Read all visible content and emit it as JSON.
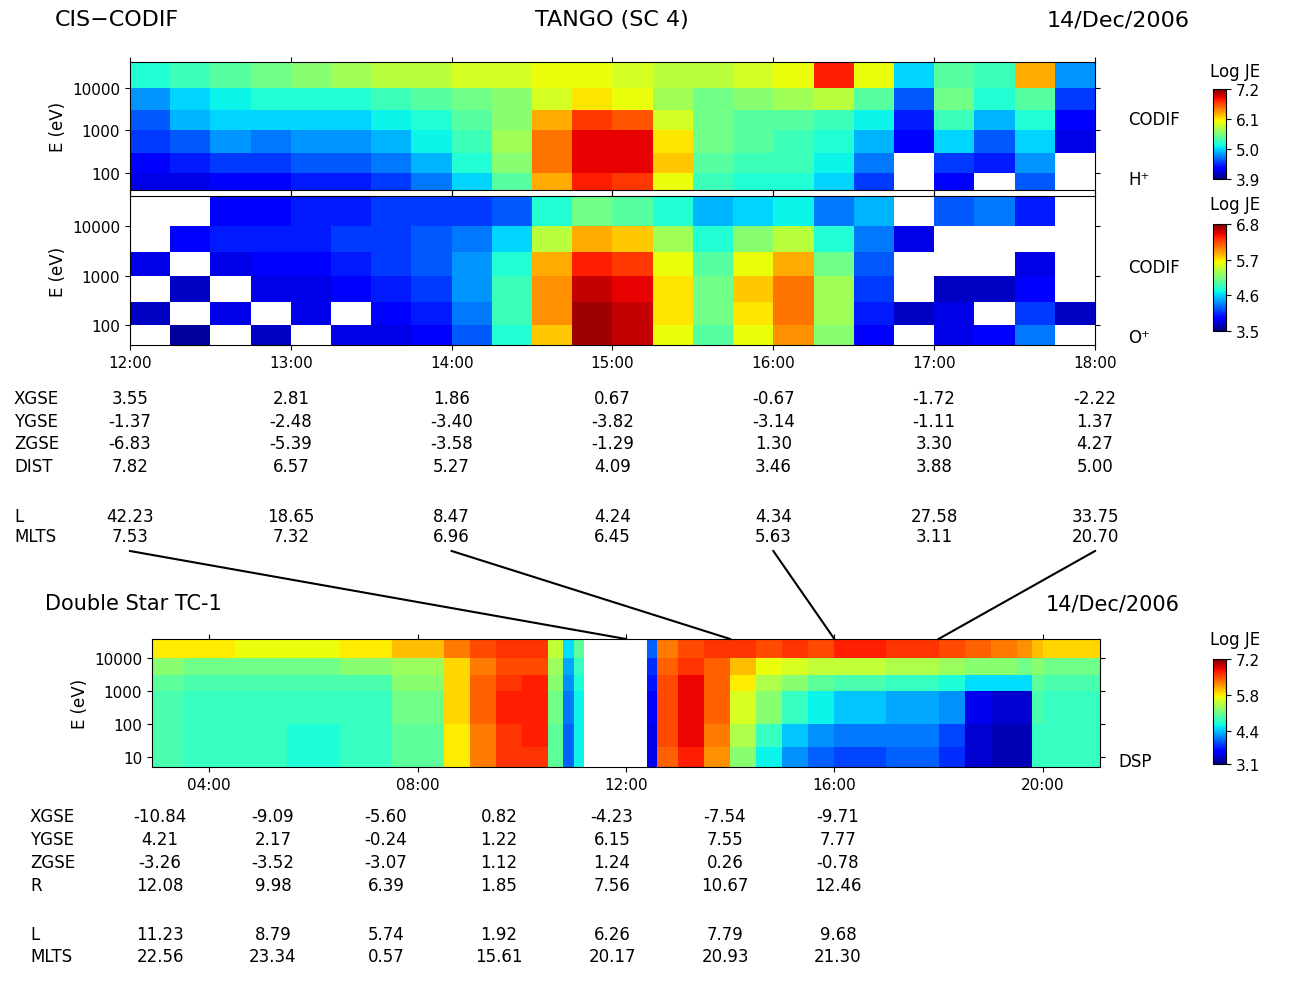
{
  "header": {
    "instrument": "CIS−CODIF",
    "spacecraft": "TANGO (SC 4)",
    "date": "14/Dec/2006"
  },
  "time_links": [
    12,
    14,
    16,
    18
  ],
  "chart_data": [
    {
      "type": "heatmap",
      "ylabel": "E (eV)",
      "log": "y",
      "tick_labels": "y",
      "side_labels": [
        "CODIF",
        "H⁺"
      ],
      "x_edges": [
        12.0,
        12.25,
        12.5,
        12.75,
        13.0,
        13.25,
        13.5,
        13.75,
        14.0,
        14.25,
        14.5,
        14.75,
        15.0,
        15.25,
        15.5,
        15.75,
        16.0,
        16.25,
        16.5,
        16.75,
        17.0,
        17.25,
        17.5,
        17.75,
        18.0
      ],
      "y_edges": [
        40,
        100,
        300,
        1000,
        3000,
        10000,
        40000
      ],
      "cells": [
        [
          4.2,
          4.3,
          4.5,
          4.6,
          4.8,
          5.2
        ],
        [
          4.2,
          4.4,
          4.6,
          4.9,
          5.0,
          5.3
        ],
        [
          4.3,
          4.5,
          4.8,
          5.0,
          5.1,
          5.4
        ],
        [
          4.3,
          4.5,
          4.7,
          5.0,
          5.2,
          5.5
        ],
        [
          4.4,
          4.6,
          4.8,
          5.0,
          5.2,
          5.6
        ],
        [
          4.4,
          4.6,
          4.8,
          5.0,
          5.2,
          5.7
        ],
        [
          4.5,
          4.7,
          4.9,
          5.1,
          5.3,
          5.8
        ],
        [
          4.7,
          4.9,
          5.1,
          5.2,
          5.4,
          5.8
        ],
        [
          5.0,
          5.2,
          5.3,
          5.4,
          5.5,
          5.9
        ],
        [
          5.4,
          5.6,
          5.7,
          5.6,
          5.6,
          5.9
        ],
        [
          6.3,
          6.5,
          6.5,
          6.3,
          5.9,
          6.0
        ],
        [
          6.8,
          6.9,
          6.9,
          6.7,
          6.1,
          6.0
        ],
        [
          6.7,
          6.9,
          6.9,
          6.6,
          6.0,
          5.9
        ],
        [
          6.0,
          6.2,
          6.1,
          5.9,
          5.7,
          5.8
        ],
        [
          5.3,
          5.4,
          5.5,
          5.5,
          5.5,
          5.8
        ],
        [
          5.2,
          5.3,
          5.4,
          5.4,
          5.6,
          5.9
        ],
        [
          5.2,
          5.3,
          5.3,
          5.4,
          5.7,
          6.0
        ],
        [
          5.0,
          5.1,
          5.2,
          5.3,
          5.8,
          6.8
        ],
        [
          4.5,
          4.7,
          4.9,
          5.1,
          5.4,
          6.0
        ],
        [
          null,
          null,
          4.3,
          4.4,
          4.6,
          5.0
        ],
        [
          4.3,
          4.5,
          5.0,
          5.3,
          5.5,
          5.4
        ],
        [
          null,
          4.4,
          4.6,
          4.9,
          5.2,
          5.3
        ],
        [
          4.6,
          4.8,
          5.0,
          5.2,
          5.4,
          6.3
        ],
        [
          null,
          null,
          4.2,
          4.3,
          4.5,
          4.8
        ]
      ],
      "xlim": [
        12,
        18
      ],
      "ylim": [
        40,
        40000
      ],
      "xticks": [
        12,
        13,
        14,
        15,
        16,
        17,
        18
      ],
      "yticks": [
        100,
        1000,
        10000
      ],
      "colorbar_label": "Log JE",
      "colorbar_range": [
        3.9,
        7.2
      ],
      "colorbar_ticks": [
        3.9,
        5.0,
        6.1,
        7.2
      ]
    },
    {
      "type": "heatmap",
      "ylabel": "E (eV)",
      "log": "y",
      "side_labels": [
        "CODIF",
        "O⁺"
      ],
      "x_edges": [
        12.0,
        12.25,
        12.5,
        12.75,
        13.0,
        13.25,
        13.5,
        13.75,
        14.0,
        14.25,
        14.5,
        14.75,
        15.0,
        15.25,
        15.5,
        15.75,
        16.0,
        16.25,
        16.5,
        16.75,
        17.0,
        17.25,
        17.5,
        17.75,
        18.0
      ],
      "y_edges": [
        40,
        100,
        300,
        1000,
        3000,
        10000,
        40000
      ],
      "cells": [
        [
          null,
          3.7,
          null,
          3.8,
          null,
          null
        ],
        [
          3.6,
          null,
          3.7,
          null,
          3.9,
          null
        ],
        [
          null,
          3.8,
          null,
          3.8,
          4.0,
          3.9
        ],
        [
          3.7,
          null,
          3.8,
          3.9,
          4.0,
          3.9
        ],
        [
          null,
          3.8,
          3.8,
          3.9,
          4.0,
          4.0
        ],
        [
          3.8,
          null,
          3.9,
          4.0,
          4.1,
          4.0
        ],
        [
          3.8,
          3.9,
          4.0,
          4.1,
          4.1,
          4.1
        ],
        [
          3.9,
          4.0,
          4.1,
          4.2,
          4.2,
          4.1
        ],
        [
          4.2,
          4.3,
          4.4,
          4.4,
          4.3,
          4.1
        ],
        [
          4.8,
          4.9,
          4.9,
          4.8,
          4.6,
          4.2
        ],
        [
          5.8,
          6.0,
          6.0,
          5.9,
          5.4,
          4.8
        ],
        [
          6.7,
          6.7,
          6.6,
          6.4,
          5.9,
          5.1
        ],
        [
          6.6,
          6.6,
          6.5,
          6.3,
          5.8,
          5.0
        ],
        [
          5.6,
          5.7,
          5.7,
          5.6,
          5.3,
          4.8
        ],
        [
          5.0,
          5.1,
          5.1,
          5.0,
          4.8,
          4.5
        ],
        [
          5.6,
          5.7,
          5.8,
          5.6,
          5.2,
          4.6
        ],
        [
          6.0,
          6.1,
          6.1,
          5.9,
          5.4,
          4.7
        ],
        [
          5.2,
          5.3,
          5.3,
          5.1,
          4.8,
          4.3
        ],
        [
          3.9,
          4.0,
          4.1,
          4.2,
          4.3,
          4.5
        ],
        [
          null,
          3.7,
          null,
          null,
          3.8,
          null
        ],
        [
          3.8,
          3.8,
          3.7,
          null,
          null,
          4.2
        ],
        [
          3.9,
          null,
          3.7,
          null,
          null,
          4.3
        ],
        [
          4.3,
          4.1,
          3.9,
          3.8,
          null,
          4.0
        ],
        [
          null,
          3.7,
          null,
          null,
          null,
          null
        ]
      ],
      "xlim": [
        12,
        18
      ],
      "ylim": [
        40,
        40000
      ],
      "xticks": [
        {
          "value": 12,
          "label": "12:00"
        },
        {
          "value": 13,
          "label": "13:00"
        },
        {
          "value": 14,
          "label": "14:00"
        },
        {
          "value": 15,
          "label": "15:00"
        },
        {
          "value": 16,
          "label": "16:00"
        },
        {
          "value": 17,
          "label": "17:00"
        },
        {
          "value": 18,
          "label": "18:00"
        }
      ],
      "yticks": [
        100,
        1000,
        10000
      ],
      "colorbar_label": "Log JE",
      "colorbar_range": [
        3.5,
        6.8
      ],
      "colorbar_ticks": [
        3.5,
        4.6,
        5.7,
        6.8
      ],
      "ephemeris": [
        {
          "name": "XGSE",
          "values": [
            3.55,
            2.81,
            1.86,
            0.67,
            -0.67,
            -1.72,
            -2.22
          ]
        },
        {
          "name": "YGSE",
          "values": [
            -1.37,
            -2.48,
            -3.4,
            -3.82,
            -3.14,
            -1.11,
            1.37
          ]
        },
        {
          "name": "ZGSE",
          "values": [
            -6.83,
            -5.39,
            -3.58,
            -1.29,
            1.3,
            3.3,
            4.27
          ]
        },
        {
          "name": "DIST",
          "values": [
            7.82,
            6.57,
            5.27,
            4.09,
            3.46,
            3.88,
            5.0
          ]
        },
        {
          "name": "L",
          "values": [
            42.23,
            18.65,
            8.47,
            4.24,
            4.34,
            27.58,
            33.75
          ]
        },
        {
          "name": "MLTS",
          "values": [
            7.53,
            7.32,
            6.96,
            6.45,
            5.63,
            3.11,
            20.7
          ]
        }
      ]
    },
    {
      "type": "heatmap",
      "title": "Double Star TC-1",
      "date": "14/Dec/2006",
      "ylabel": "E (eV)",
      "log": "y",
      "side_labels": [
        "DSP"
      ],
      "x_edges": [
        2.9,
        3.5,
        4.5,
        5.5,
        6.5,
        7.5,
        8.5,
        9.0,
        9.5,
        10.0,
        10.5,
        10.8,
        11.0,
        11.2,
        12.0,
        12.4,
        12.6,
        13.0,
        13.5,
        14.0,
        14.5,
        15.0,
        15.5,
        16.0,
        17.0,
        18.0,
        18.5,
        19.0,
        19.5,
        19.8,
        20.0,
        21.1
      ],
      "y_edges": [
        5,
        20,
        100,
        1000,
        3000,
        10000,
        38000
      ],
      "cells": [
        [
          4.9,
          4.9,
          4.9,
          5.0,
          5.2,
          5.8
        ],
        [
          4.8,
          4.8,
          4.8,
          4.9,
          5.1,
          5.8
        ],
        [
          4.8,
          4.8,
          4.8,
          4.9,
          5.1,
          5.7
        ],
        [
          4.7,
          4.7,
          4.8,
          4.9,
          5.1,
          5.7
        ],
        [
          4.8,
          4.8,
          4.8,
          4.9,
          5.2,
          5.8
        ],
        [
          5.0,
          5.0,
          5.1,
          5.2,
          5.3,
          6.0
        ],
        [
          5.8,
          5.8,
          5.9,
          5.9,
          5.9,
          6.3
        ],
        [
          6.3,
          6.3,
          6.4,
          6.4,
          6.3,
          6.5
        ],
        [
          6.6,
          6.6,
          6.7,
          6.6,
          6.5,
          6.6
        ],
        [
          6.6,
          6.7,
          6.7,
          6.7,
          6.5,
          6.6
        ],
        [
          5.0,
          5.0,
          5.1,
          5.2,
          5.3,
          5.5
        ],
        [
          4.0,
          4.0,
          4.1,
          4.2,
          4.3,
          4.5
        ],
        [
          4.6,
          4.6,
          4.6,
          4.7,
          4.8,
          5.0
        ],
        [
          null,
          null,
          null,
          null,
          null,
          null
        ],
        [
          null,
          null,
          null,
          null,
          null,
          null
        ],
        [
          3.5,
          3.5,
          3.6,
          3.7,
          3.8,
          4.0
        ],
        [
          6.4,
          6.5,
          6.5,
          6.5,
          6.4,
          6.3
        ],
        [
          6.7,
          6.8,
          6.8,
          6.8,
          6.6,
          6.5
        ],
        [
          6.2,
          6.3,
          6.4,
          6.4,
          6.4,
          6.6
        ],
        [
          5.2,
          5.4,
          5.6,
          5.8,
          6.0,
          6.6
        ],
        [
          4.6,
          4.8,
          5.2,
          5.4,
          5.7,
          6.5
        ],
        [
          4.2,
          4.4,
          4.8,
          5.2,
          5.6,
          6.6
        ],
        [
          4.0,
          4.2,
          4.6,
          5.0,
          5.5,
          6.5
        ],
        [
          3.9,
          4.1,
          4.4,
          4.9,
          5.5,
          6.7
        ],
        [
          4.0,
          4.1,
          4.3,
          4.8,
          5.4,
          6.6
        ],
        [
          3.8,
          3.9,
          4.2,
          4.7,
          5.3,
          6.5
        ],
        [
          3.4,
          3.4,
          3.5,
          4.5,
          5.2,
          6.4
        ],
        [
          3.3,
          3.3,
          3.4,
          4.5,
          5.2,
          6.3
        ],
        [
          3.3,
          3.3,
          3.4,
          4.5,
          5.1,
          6.2
        ],
        [
          4.8,
          4.8,
          4.9,
          5.0,
          5.2,
          6.0
        ],
        [
          4.8,
          4.8,
          4.8,
          4.9,
          5.1,
          5.9
        ]
      ],
      "xlim": [
        2.9,
        21.1
      ],
      "ylim": [
        5,
        38000
      ],
      "xticks": [
        {
          "value": 4,
          "label": "04:00"
        },
        {
          "value": 8,
          "label": "08:00"
        },
        {
          "value": 12,
          "label": "12:00"
        },
        {
          "value": 16,
          "label": "16:00"
        },
        {
          "value": 20,
          "label": "20:00"
        }
      ],
      "yticks": [
        10,
        100,
        1000,
        10000
      ],
      "colorbar_label": "Log JE",
      "colorbar_range": [
        3.1,
        7.2
      ],
      "colorbar_ticks": [
        3.1,
        4.4,
        5.8,
        7.2
      ],
      "ephemeris": [
        {
          "name": "XGSE",
          "values": [
            -10.84,
            -9.09,
            -5.6,
            0.82,
            -4.23,
            -7.54,
            -9.71
          ]
        },
        {
          "name": "YGSE",
          "values": [
            4.21,
            2.17,
            -0.24,
            1.22,
            6.15,
            7.55,
            7.77
          ]
        },
        {
          "name": "ZGSE",
          "values": [
            -3.26,
            -3.52,
            -3.07,
            1.12,
            1.24,
            0.26,
            -0.78
          ]
        },
        {
          "name": "R",
          "values": [
            12.08,
            9.98,
            6.39,
            1.85,
            7.56,
            10.67,
            12.46
          ]
        },
        {
          "name": "L",
          "values": [
            11.23,
            8.79,
            5.74,
            1.92,
            6.26,
            7.79,
            9.68
          ]
        },
        {
          "name": "MLTS",
          "values": [
            22.56,
            23.34,
            0.57,
            15.61,
            20.17,
            20.93,
            21.3
          ]
        }
      ]
    }
  ]
}
